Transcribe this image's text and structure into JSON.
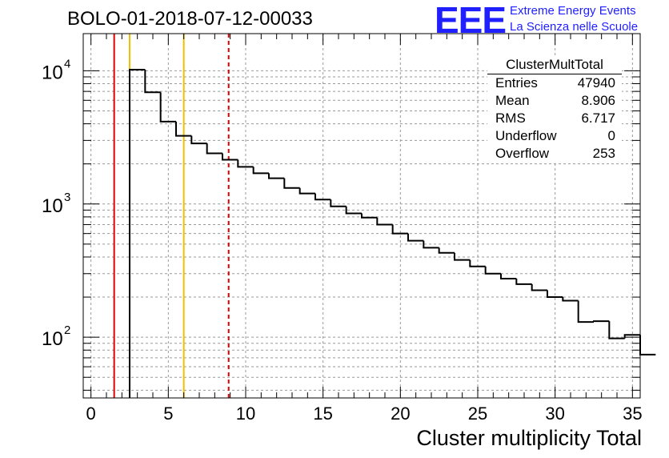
{
  "header": {
    "title": "BOLO-01-2018-07-12-00033",
    "logo_text": "EEE",
    "logo_line1": "Extreme Energy Events",
    "logo_line2": "La Scienza nelle Scuole"
  },
  "stats": {
    "title": "ClusterMultTotal",
    "rows": [
      {
        "key": "Entries",
        "value": "47940"
      },
      {
        "key": "Mean",
        "value": "8.906"
      },
      {
        "key": "RMS",
        "value": "6.717"
      },
      {
        "key": "Underflow",
        "value": "0"
      },
      {
        "key": "Overflow",
        "value": "253"
      }
    ]
  },
  "colors": {
    "histogram": "#000000",
    "red_line": "#e00000",
    "yellow_line": "#f0c000",
    "grid": "#9a9a9a",
    "logo": "#1f1fff"
  },
  "chart_data": {
    "type": "bar",
    "histogram": true,
    "xlabel": "Cluster multiplicity Total",
    "ylabel": "",
    "xlim": [
      -0.5,
      35.5
    ],
    "ylim": [
      35,
      19000
    ],
    "ylog": true,
    "grid": true,
    "x_ticks": [
      0,
      5,
      10,
      15,
      20,
      25,
      30,
      35
    ],
    "y_ticks": [
      {
        "value": 100,
        "label": "10",
        "exp": "2"
      },
      {
        "value": 1000,
        "label": "10",
        "exp": "3"
      },
      {
        "value": 10000,
        "label": "10",
        "exp": "4"
      }
    ],
    "bin_width": 1,
    "bin_edges_start": 2.5,
    "values": [
      10200,
      6900,
      4150,
      3250,
      2850,
      2400,
      2150,
      1900,
      1700,
      1560,
      1320,
      1200,
      1080,
      960,
      850,
      790,
      700,
      600,
      530,
      470,
      430,
      380,
      340,
      300,
      275,
      250,
      225,
      200,
      188,
      130,
      132,
      98,
      104,
      74
    ],
    "vertical_lines": [
      {
        "x": 1.5,
        "color": "red",
        "style": "solid"
      },
      {
        "x": 2.5,
        "color": "yellow",
        "style": "solid"
      },
      {
        "x": 6.0,
        "color": "yellow",
        "style": "solid"
      },
      {
        "x": 8.9,
        "color": "red",
        "style": "dashed"
      }
    ]
  }
}
